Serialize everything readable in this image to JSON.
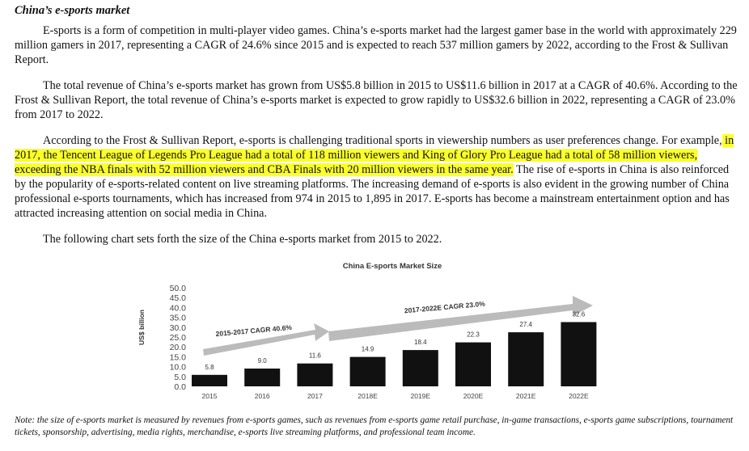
{
  "section_title": "China’s e-sports market",
  "paragraphs": {
    "p1": "E-sports is a form of competition in multi-player video games. China’s e-sports market had the largest gamer base in the world with approximately 229 million gamers in 2017, representing a CAGR of 24.6% since 2015 and is expected to reach 537 million gamers by 2022, according to the Frost & Sullivan Report.",
    "p2": "The total revenue of China’s e-sports market has grown from US$5.8 billion in 2015 to US$11.6 billion in 2017 at a CAGR of 40.6%. According to the Frost & Sullivan Report, the total revenue of China’s e-sports market is expected to grow rapidly to US$32.6 billion in 2022, representing a CAGR of 23.0% from 2017 to 2022.",
    "p3_before": "According to the Frost & Sullivan Report, e-sports is challenging traditional sports in viewership numbers as user preferences change. For example,",
    "p3_highlight": " in 2017, the Tencent League of Legends Pro League had a total of 118 million viewers and King of Glory Pro League had a total of 58 million viewers, exceeding the NBA finals with 52 million viewers and CBA Finals with 20 million viewers in the same year.",
    "p3_after": " The rise of e-sports in China is also reinforced by the popularity of e-sports-related content on live streaming platforms. The increasing demand of e-sports is also evident in the growing number of China professional e-sports tournaments, which has increased from 974 in 2015 to 1,895 in 2017. E-sports has become a mainstream entertainment option and has attracted increasing attention on social media in China.",
    "p4": "The following chart sets forth the size of the China e-sports market from 2015 to 2022."
  },
  "chart_data": {
    "type": "bar",
    "title": "China E-sports Market Size",
    "ylabel": "US$ billion",
    "xlabel": "",
    "categories": [
      "2015",
      "2016",
      "2017",
      "2018E",
      "2019E",
      "2020E",
      "2021E",
      "2022E"
    ],
    "values": [
      5.8,
      9.0,
      11.6,
      14.9,
      18.4,
      22.3,
      27.4,
      32.6
    ],
    "value_labels": [
      "5.8",
      "9.0",
      "11.6",
      "14.9",
      "18.4",
      "22.3",
      "27.4",
      "32.6"
    ],
    "yticks": [
      "0.0",
      "5.0",
      "10.0",
      "15.0",
      "20.0",
      "25.0",
      "30.0",
      "35.0",
      "40.0",
      "45.0",
      "50.0"
    ],
    "ylim": [
      0,
      50
    ],
    "bar_color": "#111111",
    "arrow_color": "#bbbbbb",
    "annotations": [
      "2015-2017 CAGR 40.6%",
      "2017-2022E CAGR 23.0%"
    ],
    "grid": false,
    "legend": "none"
  },
  "note": "Note: the size of e-sports market is measured by revenues from e-sports games, such as revenues from e-sports game retail purchase, in-game transactions, e-sports game subscriptions, tournament tickets, sponsorship, advertising, media rights, merchandise, e-sports live streaming platforms, and professional team income."
}
